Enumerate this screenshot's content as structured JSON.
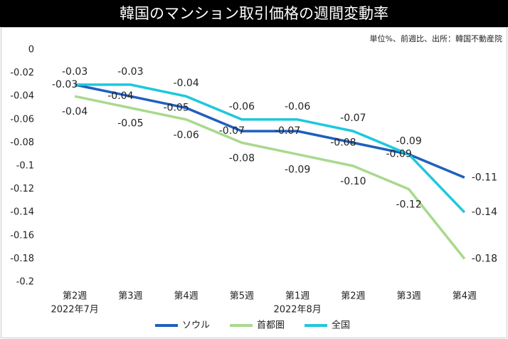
{
  "chart_data": {
    "type": "line",
    "title": "韓国のマンション取引価格の週間変動率",
    "subtitle": "単位%、前週比、出所：韓国不動産院",
    "categories": [
      "第2週",
      "第3週",
      "第4週",
      "第5週",
      "第1週",
      "第2週",
      "第3週",
      "第4週"
    ],
    "x_group_labels": [
      "2022年7月",
      null,
      null,
      null,
      "2022年8月",
      null,
      null,
      null
    ],
    "series": [
      {
        "name": "ソウル",
        "color": "#1f5fbf",
        "values": [
          -0.03,
          -0.04,
          -0.05,
          -0.07,
          -0.07,
          -0.08,
          -0.09,
          -0.11
        ],
        "value_labels": [
          "-0.03",
          "-0.04",
          "-0.05",
          "-0.07",
          "-0.07",
          "-0.08",
          "-0.09",
          "-0.11"
        ]
      },
      {
        "name": "首都圏",
        "color": "#a9d98e",
        "values": [
          -0.04,
          -0.05,
          -0.06,
          -0.08,
          -0.09,
          -0.1,
          -0.12,
          -0.18
        ],
        "value_labels": [
          "-0.04",
          "-0.05",
          "-0.06",
          "-0.08",
          "-0.09",
          "-0.10",
          "-0.12",
          "-0.18"
        ]
      },
      {
        "name": "全国",
        "color": "#1ec8dc",
        "values": [
          -0.03,
          -0.03,
          -0.04,
          -0.06,
          -0.06,
          -0.07,
          -0.09,
          -0.14
        ],
        "value_labels": [
          "-0.03",
          "-0.03",
          "-0.04",
          "-0.06",
          "-0.06",
          "-0.07",
          "-0.09",
          "-0.14"
        ]
      }
    ],
    "ylim": [
      -0.2,
      0
    ],
    "yticks": [
      0,
      -0.02,
      -0.04,
      -0.06,
      -0.08,
      -0.1,
      -0.12,
      -0.14,
      -0.16,
      -0.18,
      -0.2
    ],
    "grid": false
  }
}
